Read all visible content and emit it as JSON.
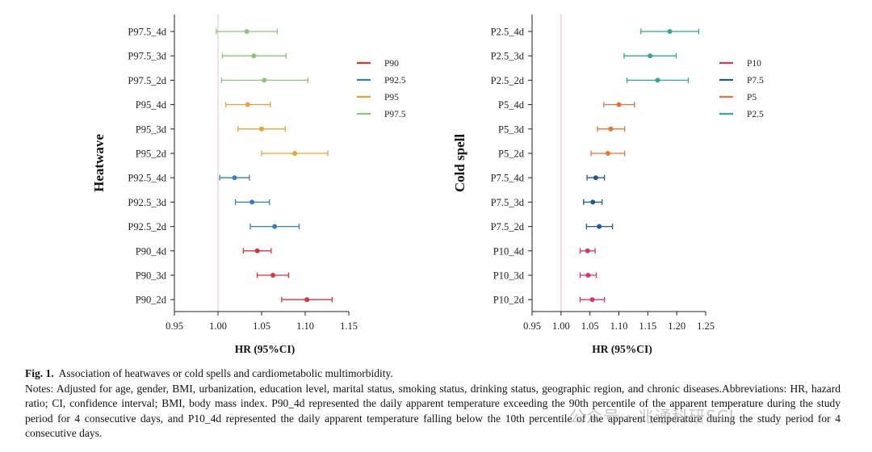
{
  "chart_data": [
    {
      "type": "forest",
      "ylabel": "Heatwave",
      "xlabel": "HR (95%CI)",
      "xlim": [
        0.95,
        1.15
      ],
      "xticks": [
        "0.95",
        "1.00",
        "1.05",
        "1.10",
        "1.15"
      ],
      "reference_line": 1.0,
      "legend_position": "right",
      "series": [
        {
          "name": "P90",
          "color": "#e0303a",
          "rows": [
            {
              "label": "P90_4d",
              "hr": 1.045,
              "lo": 1.029,
              "hi": 1.061
            },
            {
              "label": "P90_3d",
              "hr": 1.063,
              "lo": 1.045,
              "hi": 1.081
            },
            {
              "label": "P90_2d",
              "hr": 1.102,
              "lo": 1.073,
              "hi": 1.131
            }
          ]
        },
        {
          "name": "P92.5",
          "color": "#2f80c3",
          "rows": [
            {
              "label": "P92.5_4d",
              "hr": 1.019,
              "lo": 1.002,
              "hi": 1.036
            },
            {
              "label": "P92.5_3d",
              "hr": 1.039,
              "lo": 1.02,
              "hi": 1.059
            },
            {
              "label": "P92.5_2d",
              "hr": 1.065,
              "lo": 1.037,
              "hi": 1.093
            }
          ]
        },
        {
          "name": "P95",
          "color": "#f0a030",
          "rows": [
            {
              "label": "P95_4d",
              "hr": 1.034,
              "lo": 1.009,
              "hi": 1.06
            },
            {
              "label": "P95_3d",
              "hr": 1.05,
              "lo": 1.023,
              "hi": 1.077
            },
            {
              "label": "P95_2d",
              "hr": 1.088,
              "lo": 1.05,
              "hi": 1.126
            }
          ]
        },
        {
          "name": "P97.5",
          "color": "#8cc47a",
          "rows": [
            {
              "label": "P97.5_4d",
              "hr": 1.033,
              "lo": 0.998,
              "hi": 1.068
            },
            {
              "label": "P97.5_3d",
              "hr": 1.041,
              "lo": 1.005,
              "hi": 1.078
            },
            {
              "label": "P97.5_2d",
              "hr": 1.053,
              "lo": 1.004,
              "hi": 1.103
            }
          ]
        }
      ],
      "row_order": [
        "P97.5_4d",
        "P97.5_3d",
        "P97.5_2d",
        "P95_4d",
        "P95_3d",
        "P95_2d",
        "P92.5_4d",
        "P92.5_3d",
        "P92.5_2d",
        "P90_4d",
        "P90_3d",
        "P90_2d"
      ],
      "legend_order": [
        "P90",
        "P92.5",
        "P95",
        "P97.5"
      ]
    },
    {
      "type": "forest",
      "ylabel": "Cold spell",
      "xlabel": "HR (95%CI)",
      "xlim": [
        0.95,
        1.25
      ],
      "xticks": [
        "0.95",
        "1.00",
        "1.05",
        "1.10",
        "1.15",
        "1.20",
        "1.25"
      ],
      "reference_line": 1.0,
      "legend_position": "right",
      "series": [
        {
          "name": "P10",
          "color": "#e0306a",
          "rows": [
            {
              "label": "P10_4d",
              "hr": 1.046,
              "lo": 1.033,
              "hi": 1.059
            },
            {
              "label": "P10_3d",
              "hr": 1.047,
              "lo": 1.033,
              "hi": 1.061
            },
            {
              "label": "P10_2d",
              "hr": 1.054,
              "lo": 1.033,
              "hi": 1.075
            }
          ]
        },
        {
          "name": "P7.5",
          "color": "#1f5aa0",
          "rows": [
            {
              "label": "P7.5_4d",
              "hr": 1.06,
              "lo": 1.045,
              "hi": 1.075
            },
            {
              "label": "P7.5_3d",
              "hr": 1.055,
              "lo": 1.039,
              "hi": 1.071
            },
            {
              "label": "P7.5_2d",
              "hr": 1.066,
              "lo": 1.044,
              "hi": 1.089
            }
          ]
        },
        {
          "name": "P5",
          "color": "#f07030",
          "rows": [
            {
              "label": "P5_4d",
              "hr": 1.1,
              "lo": 1.074,
              "hi": 1.127
            },
            {
              "label": "P5_3d",
              "hr": 1.086,
              "lo": 1.063,
              "hi": 1.11
            },
            {
              "label": "P5_2d",
              "hr": 1.081,
              "lo": 1.052,
              "hi": 1.11
            }
          ]
        },
        {
          "name": "P2.5",
          "color": "#2eaa96",
          "rows": [
            {
              "label": "P2.5_4d",
              "hr": 1.188,
              "lo": 1.138,
              "hi": 1.238
            },
            {
              "label": "P2.5_3d",
              "hr": 1.154,
              "lo": 1.109,
              "hi": 1.199
            },
            {
              "label": "P2.5_2d",
              "hr": 1.167,
              "lo": 1.114,
              "hi": 1.22
            }
          ]
        }
      ],
      "row_order": [
        "P2.5_4d",
        "P2.5_3d",
        "P2.5_2d",
        "P5_4d",
        "P5_3d",
        "P5_2d",
        "P7.5_4d",
        "P7.5_3d",
        "P7.5_2d",
        "P10_4d",
        "P10_3d",
        "P10_2d"
      ],
      "legend_order": [
        "P10",
        "P7.5",
        "P5",
        "P2.5"
      ]
    }
  ],
  "caption": {
    "fig_label": "Fig. 1.",
    "title": "Association of heatwaves or cold spells and cardiometabolic multimorbidity.",
    "notes": "Notes: Adjusted for age, gender, BMI, urbanization, education level, marital status, smoking status, drinking status, geographic region, and chronic diseases.Abbreviations: HR, hazard ratio; CI, confidence interval; BMI, body mass index. P90_4d represented the daily apparent temperature exceeding the 90th percentile of the apparent temperature during the study period for 4 consecutive days, and P10_4d represented the daily apparent temperature falling below the 10th percentile of the apparent temperature during the study period for 4 consecutive days."
  },
  "watermark": "公众号 · 兆通科研SCI"
}
